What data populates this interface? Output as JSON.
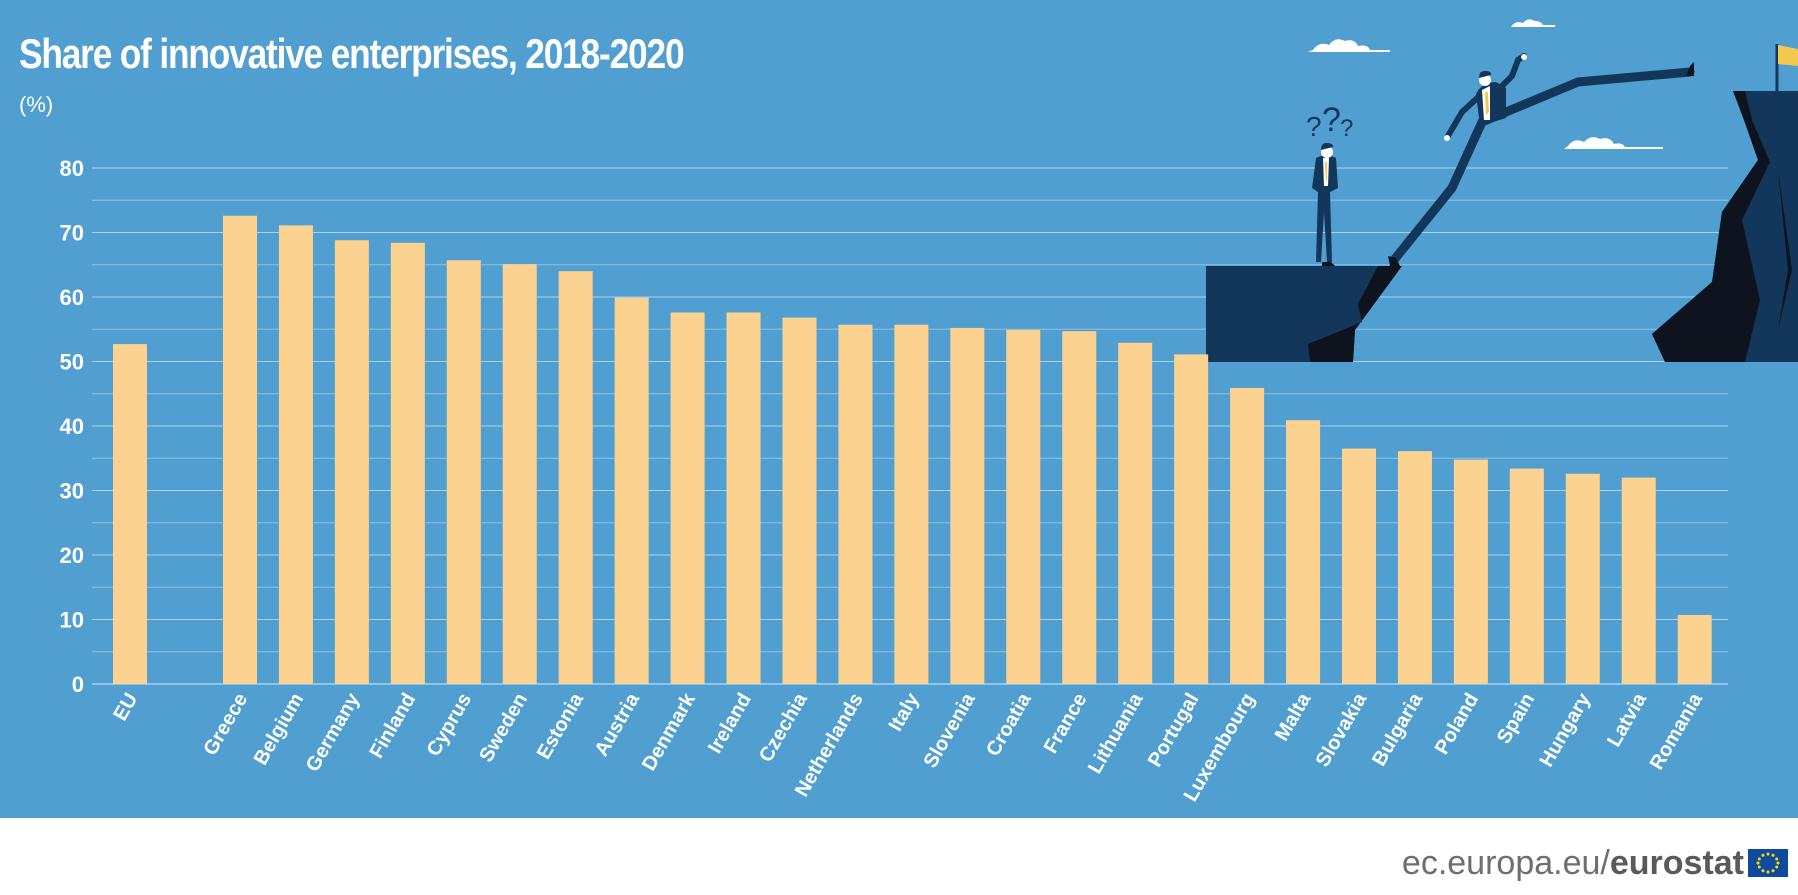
{
  "title": "Share of innovative enterprises, 2018-2020",
  "unit_label": "(%)",
  "footer": {
    "domain_text": "ec.europa.eu/",
    "brand_text": "eurostat"
  },
  "colors": {
    "background": "#519fd1",
    "bar": "#fbd290",
    "grid": "#8cc1e3",
    "text": "#ffffff",
    "cliff_dark": "#12375a",
    "flag": "#f2c94c",
    "eu_flag_blue": "#0e4aa0",
    "eu_flag_star": "#ffdd00"
  },
  "illustration": {
    "description_icon": "cliff-jump-businessman-illustration",
    "question_marks": "?.?.?"
  },
  "chart_data": {
    "type": "bar",
    "title": "Share of innovative enterprises, 2018-2020",
    "ylabel": "(%)",
    "xlabel": "",
    "ylim": [
      0,
      80
    ],
    "yticks": [
      0,
      10,
      20,
      30,
      40,
      50,
      60,
      70,
      80
    ],
    "grid": true,
    "categories": [
      "EU",
      "Greece",
      "Belgium",
      "Germany",
      "Finland",
      "Cyprus",
      "Sweden",
      "Estonia",
      "Austria",
      "Denmark",
      "Ireland",
      "Czechia",
      "Netherlands",
      "Italy",
      "Slovenia",
      "Croatia",
      "France",
      "Lithuania",
      "Portugal",
      "Luxembourg",
      "Malta",
      "Slovakia",
      "Bulgaria",
      "Poland",
      "Spain",
      "Hungary",
      "Latvia",
      "Romania"
    ],
    "values": [
      52.7,
      72.6,
      71.1,
      68.8,
      68.4,
      65.7,
      65.1,
      64.0,
      59.9,
      57.6,
      57.6,
      56.8,
      55.7,
      55.7,
      55.2,
      54.9,
      54.7,
      52.9,
      51.1,
      45.9,
      40.9,
      36.5,
      36.1,
      34.8,
      33.4,
      32.6,
      32.0,
      10.7
    ]
  }
}
